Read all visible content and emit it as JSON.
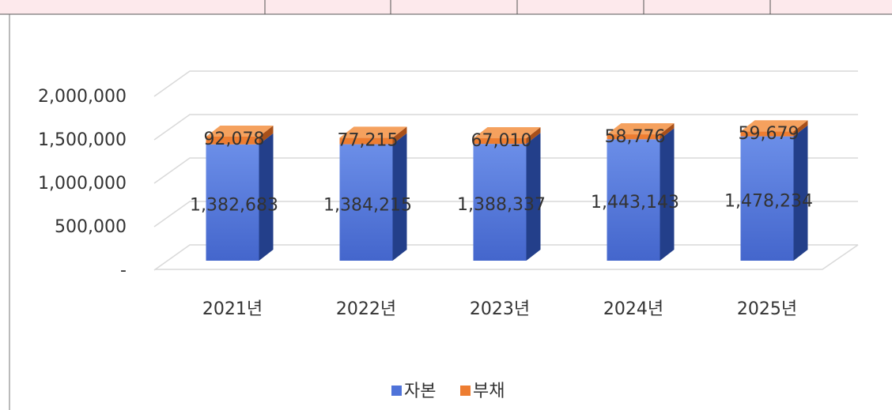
{
  "chart_data": {
    "type": "bar3d_stacked",
    "categories": [
      "2021년",
      "2022년",
      "2023년",
      "2024년",
      "2025년"
    ],
    "series": [
      {
        "name": "자본",
        "color": "#4f73d9",
        "values": [
          1382683,
          1384215,
          1388337,
          1443143,
          1478234
        ]
      },
      {
        "name": "부채",
        "color": "#ed7d31",
        "values": [
          92078,
          77215,
          67010,
          58776,
          59679
        ]
      }
    ],
    "ylim": [
      0,
      2000000
    ],
    "yticks": [
      {
        "value": 0,
        "label": "-"
      },
      {
        "value": 500000,
        "label": "500,000"
      },
      {
        "value": 1000000,
        "label": "1,000,000"
      },
      {
        "value": 1500000,
        "label": "1,500,000"
      },
      {
        "value": 2000000,
        "label": "2,000,000"
      }
    ],
    "grid": true
  }
}
